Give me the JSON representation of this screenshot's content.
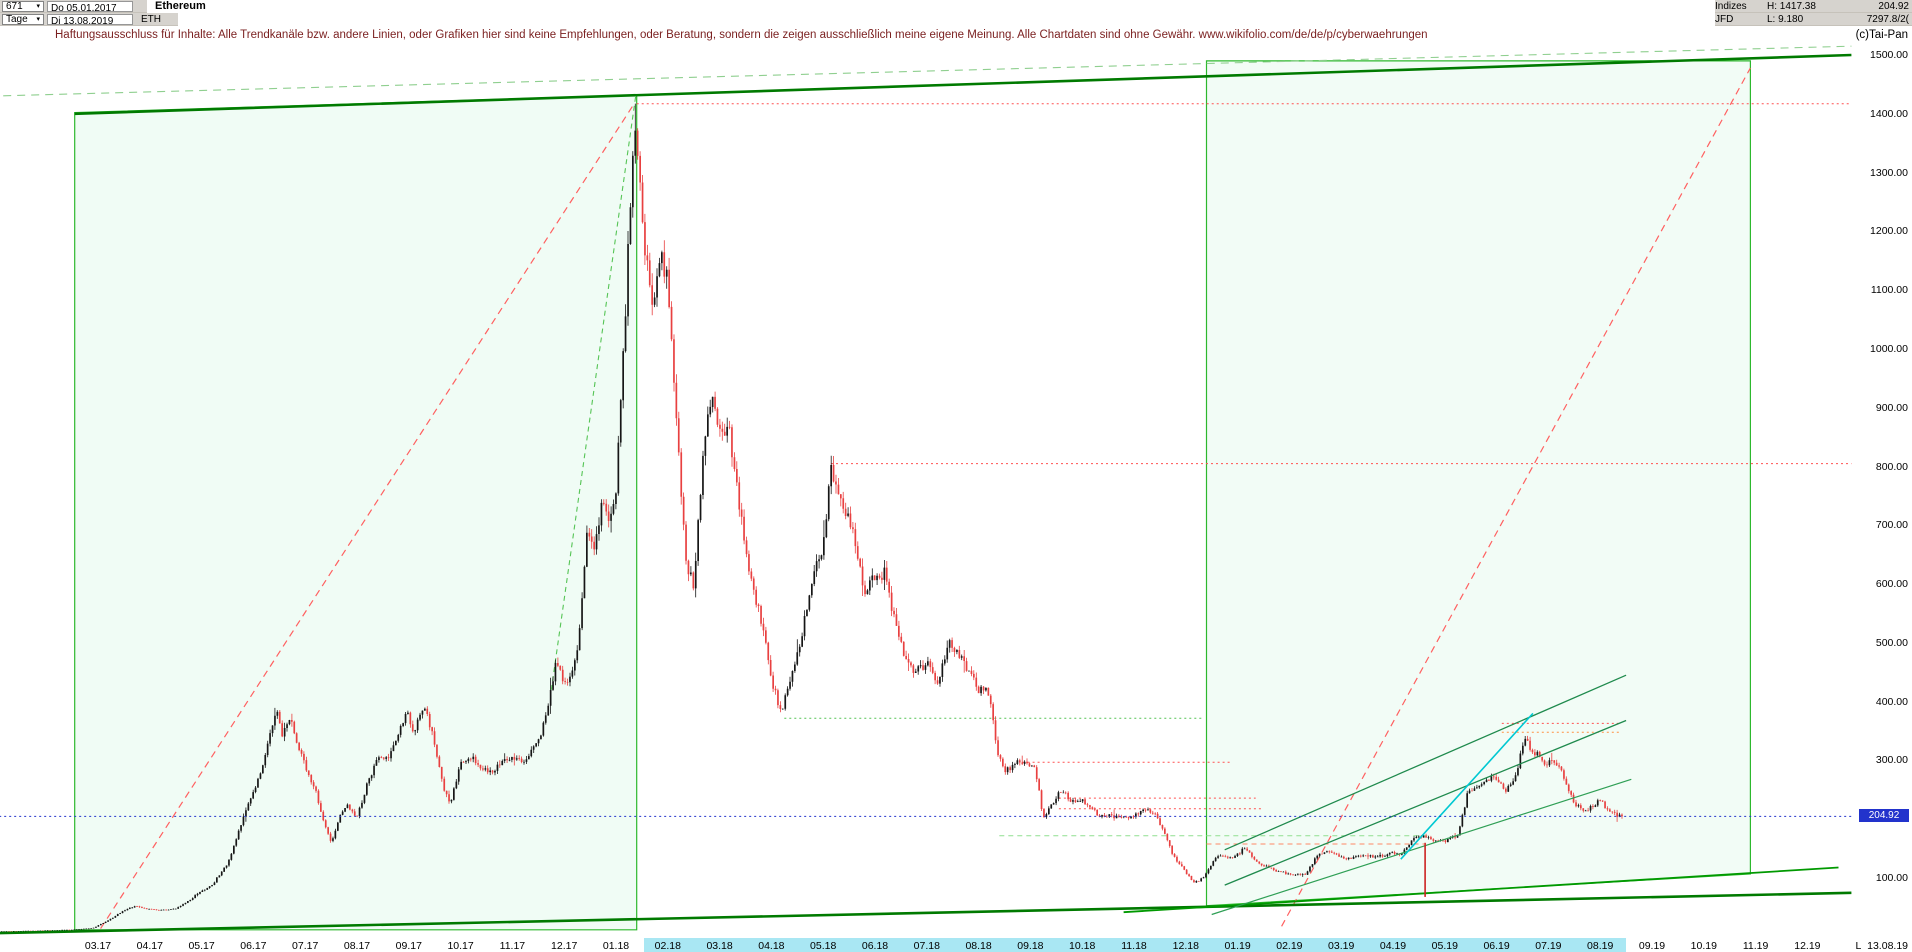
{
  "header": {
    "bar_count": "671",
    "start_date": "Do 05.01.2017",
    "title": "Ethereum",
    "period": "Tage",
    "current_date": "Di 13.08.2019",
    "symbol": "ETH",
    "right": {
      "row1_label": "Indizes",
      "row1_value": "H: 1417.38",
      "row1_far": "204.92",
      "row2_label": "JFD",
      "row2_value": "L: 9.180",
      "row2_far": "7297.8/2("
    }
  },
  "disclaimer": "Haftungsausschluss für Inhalte: Alle Trendkanäle bzw. andere Linien, oder Grafiken hier sind keine Empfehlungen, oder Beratung, sondern die zeigen ausschließlich meine eigene Meinung. Alle Chartdaten sind ohne Gewähr.  www.wikifolio.com/de/de/p/cyberwaehrungen",
  "copyright": "(c)Tai-Pan",
  "chart_data": {
    "type": "candlestick",
    "instrument": "Ethereum",
    "symbol": "ETH",
    "timeframe": "Tage",
    "bars": 671,
    "high": 1417.38,
    "low": 9.18,
    "last_price": 204.92,
    "last_price_label": "204.92",
    "last_date": "13.08.2019",
    "y_axis": {
      "ticks": [
        1500,
        1400,
        1300,
        1200,
        1100,
        1000,
        900,
        800,
        700,
        600,
        500,
        400,
        300,
        100
      ],
      "unit": "USD"
    },
    "x_axis": {
      "first_month_index": 2,
      "labels": [
        "03.17",
        "04.17",
        "05.17",
        "06.17",
        "07.17",
        "08.17",
        "09.17",
        "10.17",
        "11.17",
        "12.17",
        "01.18",
        "02.18",
        "03.18",
        "04.18",
        "05.18",
        "06.18",
        "07.18",
        "08.18",
        "09.18",
        "10.18",
        "11.18",
        "12.18",
        "01.19",
        "02.19",
        "03.19",
        "04.19",
        "05.19",
        "06.19",
        "07.19",
        "08.19",
        "09.19",
        "10.19",
        "11.19",
        "12.19"
      ],
      "last_label": "L  13.08.19",
      "highlight": {
        "from_m": 12.55,
        "to_m": 31.5,
        "color": "#a9e7f3"
      }
    },
    "price_path": [
      [
        0.15,
        9.5
      ],
      [
        0.5,
        10
      ],
      [
        1.0,
        11
      ],
      [
        1.5,
        12
      ],
      [
        1.9,
        15
      ],
      [
        2.2,
        28
      ],
      [
        2.5,
        45
      ],
      [
        2.7,
        52
      ],
      [
        2.9,
        48
      ],
      [
        3.2,
        45
      ],
      [
        3.5,
        48
      ],
      [
        3.8,
        65
      ],
      [
        4.0,
        78
      ],
      [
        4.2,
        88
      ],
      [
        4.5,
        125
      ],
      [
        4.7,
        175
      ],
      [
        4.9,
        230
      ],
      [
        5.05,
        255
      ],
      [
        5.2,
        300
      ],
      [
        5.45,
        395
      ],
      [
        5.55,
        345
      ],
      [
        5.7,
        375
      ],
      [
        5.85,
        330
      ],
      [
        6.0,
        290
      ],
      [
        6.2,
        250
      ],
      [
        6.35,
        200
      ],
      [
        6.5,
        160
      ],
      [
        6.65,
        200
      ],
      [
        6.8,
        225
      ],
      [
        7.0,
        205
      ],
      [
        7.2,
        260
      ],
      [
        7.4,
        305
      ],
      [
        7.6,
        300
      ],
      [
        7.8,
        345
      ],
      [
        7.95,
        383
      ],
      [
        8.1,
        350
      ],
      [
        8.3,
        390
      ],
      [
        8.5,
        330
      ],
      [
        8.65,
        260
      ],
      [
        8.8,
        225
      ],
      [
        9.0,
        295
      ],
      [
        9.2,
        305
      ],
      [
        9.4,
        290
      ],
      [
        9.6,
        280
      ],
      [
        9.8,
        300
      ],
      [
        10.0,
        305
      ],
      [
        10.2,
        300
      ],
      [
        10.5,
        330
      ],
      [
        10.7,
        400
      ],
      [
        10.85,
        470
      ],
      [
        11.0,
        430
      ],
      [
        11.15,
        445
      ],
      [
        11.3,
        520
      ],
      [
        11.45,
        700
      ],
      [
        11.6,
        660
      ],
      [
        11.75,
        745
      ],
      [
        11.85,
        710
      ],
      [
        12.0,
        755
      ],
      [
        12.15,
        1000
      ],
      [
        12.35,
        1395
      ],
      [
        12.45,
        1300
      ],
      [
        12.55,
        1180
      ],
      [
        12.7,
        1060
      ],
      [
        12.85,
        1155
      ],
      [
        13.0,
        1115
      ],
      [
        13.15,
        900
      ],
      [
        13.35,
        640
      ],
      [
        13.5,
        600
      ],
      [
        13.7,
        845
      ],
      [
        13.85,
        920
      ],
      [
        14.0,
        870
      ],
      [
        14.2,
        855
      ],
      [
        14.45,
        690
      ],
      [
        14.65,
        590
      ],
      [
        14.85,
        520
      ],
      [
        15.05,
        420
      ],
      [
        15.2,
        382
      ],
      [
        15.4,
        450
      ],
      [
        15.6,
        520
      ],
      [
        15.8,
        620
      ],
      [
        16.0,
        665
      ],
      [
        16.15,
        800
      ],
      [
        16.35,
        750
      ],
      [
        16.6,
        680
      ],
      [
        16.8,
        590
      ],
      [
        17.0,
        610
      ],
      [
        17.2,
        620
      ],
      [
        17.4,
        525
      ],
      [
        17.6,
        470
      ],
      [
        17.8,
        450
      ],
      [
        18.0,
        465
      ],
      [
        18.2,
        430
      ],
      [
        18.45,
        500
      ],
      [
        18.65,
        475
      ],
      [
        18.85,
        445
      ],
      [
        19.0,
        420
      ],
      [
        19.2,
        415
      ],
      [
        19.35,
        320
      ],
      [
        19.5,
        280
      ],
      [
        19.7,
        295
      ],
      [
        19.9,
        300
      ],
      [
        20.1,
        285
      ],
      [
        20.25,
        200
      ],
      [
        20.4,
        225
      ],
      [
        20.6,
        250
      ],
      [
        20.8,
        230
      ],
      [
        21.0,
        232
      ],
      [
        21.3,
        208
      ],
      [
        21.6,
        205
      ],
      [
        21.9,
        202
      ],
      [
        22.1,
        212
      ],
      [
        22.35,
        215
      ],
      [
        22.55,
        185
      ],
      [
        22.75,
        140
      ],
      [
        22.95,
        115
      ],
      [
        23.15,
        92
      ],
      [
        23.35,
        100
      ],
      [
        23.55,
        132
      ],
      [
        23.7,
        140
      ],
      [
        23.85,
        133
      ],
      [
        24.0,
        140
      ],
      [
        24.15,
        153
      ],
      [
        24.35,
        128
      ],
      [
        24.55,
        120
      ],
      [
        24.75,
        112
      ],
      [
        25.0,
        107
      ],
      [
        25.3,
        105
      ],
      [
        25.55,
        140
      ],
      [
        25.75,
        148
      ],
      [
        25.95,
        136
      ],
      [
        26.15,
        134
      ],
      [
        26.45,
        138
      ],
      [
        26.7,
        136
      ],
      [
        26.95,
        142
      ],
      [
        27.15,
        141
      ],
      [
        27.4,
        168
      ],
      [
        27.6,
        172
      ],
      [
        27.8,
        162
      ],
      [
        28.0,
        163
      ],
      [
        28.25,
        172
      ],
      [
        28.45,
        248
      ],
      [
        28.65,
        252
      ],
      [
        28.85,
        268
      ],
      [
        29.0,
        272
      ],
      [
        29.15,
        248
      ],
      [
        29.35,
        268
      ],
      [
        29.55,
        340
      ],
      [
        29.65,
        318
      ],
      [
        29.8,
        310
      ],
      [
        29.95,
        290
      ],
      [
        30.1,
        302
      ],
      [
        30.3,
        272
      ],
      [
        30.5,
        228
      ],
      [
        30.7,
        210
      ],
      [
        30.85,
        222
      ],
      [
        31.0,
        235
      ],
      [
        31.15,
        212
      ],
      [
        31.3,
        208
      ],
      [
        31.4,
        205
      ]
    ],
    "annotations": [
      {
        "name": "left-channel-box",
        "type": "polygon",
        "color": "#2db82d",
        "width": 1.2,
        "fill": "rgba(0,200,80,0.06)",
        "points": [
          [
            1.55,
            1402
          ],
          [
            12.4,
            1432
          ],
          [
            12.4,
            12
          ],
          [
            1.55,
            12
          ]
        ],
        "layer": "back"
      },
      {
        "name": "right-projection-box",
        "type": "polygon",
        "color": "#2db82d",
        "width": 1.2,
        "fill": "rgba(0,200,80,0.05)",
        "points": [
          [
            23.4,
            1490
          ],
          [
            33.9,
            1490
          ],
          [
            33.9,
            107
          ],
          [
            23.4,
            53
          ]
        ],
        "layer": "back"
      },
      {
        "name": "upper-dashed-trendline",
        "type": "line",
        "color": "#8fcf8f",
        "width": 1.1,
        "dash": "8,6",
        "points": [
          [
            -0.1,
            1430
          ],
          [
            35.85,
            1515
          ]
        ],
        "layer": "back"
      },
      {
        "name": "red-dashed-uptrend-2017",
        "type": "line",
        "color": "#ff6060",
        "width": 1.2,
        "dash": "7,5",
        "points": [
          [
            2.05,
            14
          ],
          [
            12.35,
            1417
          ]
        ],
        "layer": "back"
      },
      {
        "name": "green-dashed-steep-2017",
        "type": "line",
        "color": "#55c455",
        "width": 1.1,
        "dash": "5,4",
        "points": [
          [
            10.75,
            420
          ],
          [
            12.38,
            1430
          ]
        ],
        "layer": "back"
      },
      {
        "name": "red-dashed-uptrend-2019",
        "type": "line",
        "color": "#ff6060",
        "width": 1.2,
        "dash": "7,5",
        "points": [
          [
            24.85,
            18
          ],
          [
            33.9,
            1478
          ]
        ],
        "layer": "back"
      },
      {
        "name": "resistance-1417-dotted",
        "type": "line",
        "color": "#ff5050",
        "width": 1,
        "dash": "2,3",
        "points": [
          [
            12.4,
            1417
          ],
          [
            35.85,
            1417
          ]
        ],
        "layer": "back"
      },
      {
        "name": "resistance-805-dotted",
        "type": "line",
        "color": "#ff5050",
        "width": 1,
        "dash": "2,3",
        "points": [
          [
            16.15,
            805
          ],
          [
            35.85,
            805
          ]
        ],
        "layer": "back"
      },
      {
        "name": "support-372-dotted",
        "type": "line",
        "color": "#55c455",
        "width": 1,
        "dash": "2,3",
        "points": [
          [
            15.25,
            372
          ],
          [
            23.35,
            372
          ]
        ],
        "layer": "back"
      },
      {
        "name": "resistance-297-dotted",
        "type": "line",
        "color": "#ff5050",
        "width": 1,
        "dash": "2,3",
        "points": [
          [
            19.85,
            297
          ],
          [
            23.9,
            297
          ]
        ],
        "layer": "back"
      },
      {
        "name": "resistance-236-dotted",
        "type": "line",
        "color": "#ff5050",
        "width": 1,
        "dash": "2,3",
        "points": [
          [
            20.55,
            236
          ],
          [
            24.35,
            236
          ]
        ],
        "layer": "back"
      },
      {
        "name": "resistance-218-dotted",
        "type": "line",
        "color": "#ff5050",
        "width": 1,
        "dash": "2,3",
        "points": [
          [
            20.55,
            218
          ],
          [
            24.45,
            218
          ]
        ],
        "layer": "back"
      },
      {
        "name": "support-172-dashed",
        "type": "line",
        "color": "#8fdf8f",
        "width": 1,
        "dash": "5,4",
        "points": [
          [
            19.4,
            172
          ],
          [
            27.7,
            172
          ]
        ],
        "layer": "back"
      },
      {
        "name": "support-158-dashed",
        "type": "line",
        "color": "#ff8866",
        "width": 1,
        "dash": "5,4",
        "points": [
          [
            23.4,
            158
          ],
          [
            27.6,
            158
          ]
        ],
        "layer": "back"
      },
      {
        "name": "resistance-363-dotted",
        "type": "line",
        "color": "#ff5050",
        "width": 1,
        "dash": "2,3",
        "points": [
          [
            29.1,
            363
          ],
          [
            31.4,
            363
          ]
        ],
        "layer": "back"
      },
      {
        "name": "resistance-348-dotted",
        "type": "line",
        "color": "#ff9040",
        "width": 1,
        "dash": "2,3",
        "points": [
          [
            29.1,
            348
          ],
          [
            31.4,
            348
          ]
        ],
        "layer": "back"
      },
      {
        "name": "upper-resistance-trendline",
        "type": "line",
        "color": "#007a00",
        "width": 2.6,
        "points": [
          [
            1.55,
            1400
          ],
          [
            35.85,
            1500
          ]
        ],
        "layer": "front"
      },
      {
        "name": "lower-support-trendline",
        "type": "line",
        "color": "#007a00",
        "width": 2.6,
        "points": [
          [
            -0.1,
            6
          ],
          [
            35.85,
            75
          ]
        ],
        "layer": "front"
      },
      {
        "name": "secondary-support-trendline",
        "type": "line",
        "color": "#009900",
        "width": 1.8,
        "points": [
          [
            21.8,
            42
          ],
          [
            35.6,
            118
          ]
        ],
        "layer": "front"
      },
      {
        "name": "channel-2019-upper-trendline",
        "type": "line",
        "color": "#1f8a4d",
        "width": 1.3,
        "points": [
          [
            23.75,
            148
          ],
          [
            31.5,
            445
          ]
        ],
        "layer": "front"
      },
      {
        "name": "channel-2019-lower-trendline",
        "type": "line",
        "color": "#1f8a4d",
        "width": 1.3,
        "points": [
          [
            23.75,
            88
          ],
          [
            31.5,
            368
          ]
        ],
        "layer": "front"
      },
      {
        "name": "trend-2019-mid-trendline",
        "type": "line",
        "color": "#2f9f55",
        "width": 1.2,
        "points": [
          [
            23.5,
            38
          ],
          [
            31.6,
            268
          ]
        ],
        "layer": "front"
      },
      {
        "name": "cyan-trendline",
        "type": "line",
        "color": "#00c8d2",
        "width": 1.6,
        "points": [
          [
            27.15,
            132
          ],
          [
            29.7,
            380
          ]
        ],
        "layer": "front"
      },
      {
        "name": "event-marker-vline",
        "type": "line",
        "color": "#cc2222",
        "width": 1.6,
        "points": [
          [
            27.62,
            68
          ],
          [
            27.62,
            160
          ]
        ],
        "layer": "front"
      },
      {
        "name": "current-price-dotted-line",
        "type": "line",
        "color": "#2233cc",
        "width": 1,
        "dash": "2,3",
        "points": [
          [
            -0.1,
            204.92
          ],
          [
            35.9,
            204.92
          ]
        ],
        "layer": "front"
      }
    ]
  }
}
